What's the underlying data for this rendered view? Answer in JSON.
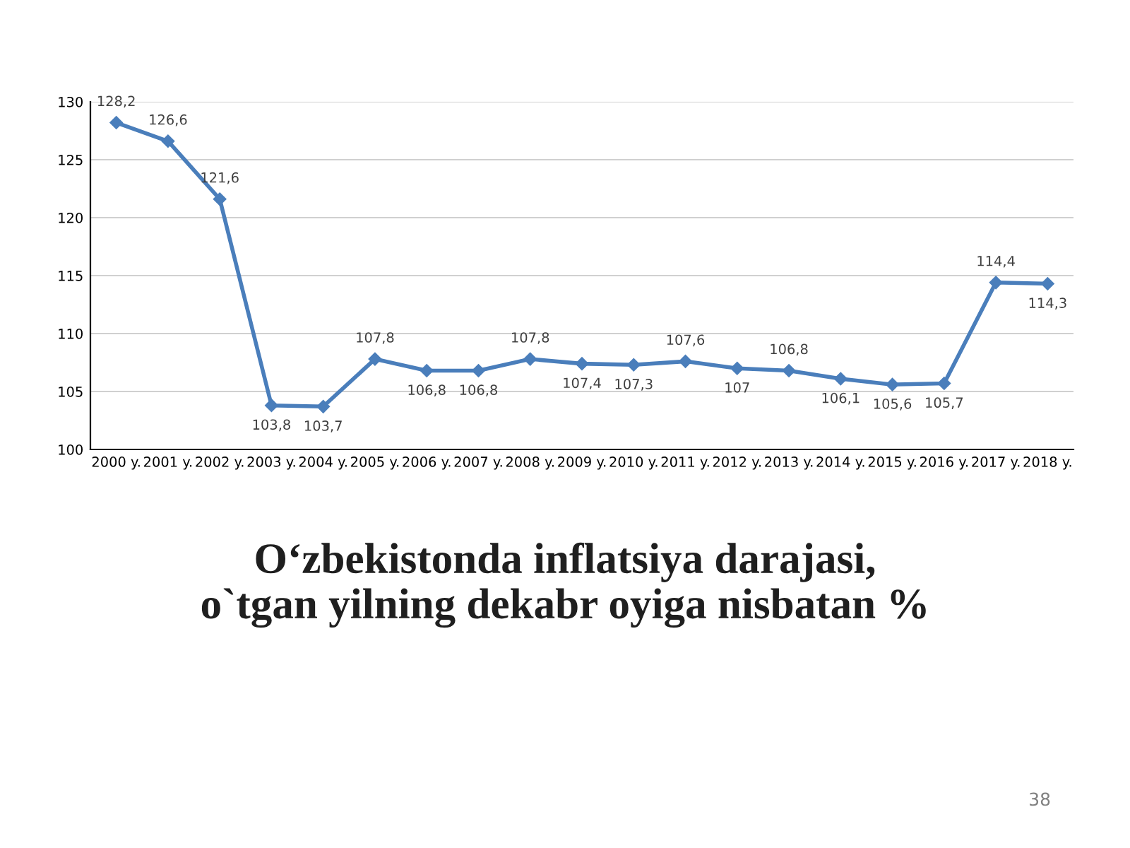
{
  "chart_data": {
    "type": "line",
    "title": "O‘zbekistonda inflatsiya darajasi,\no`tgan yilning dekabr oyiga nisbatan %",
    "categories": [
      "2000 y.",
      "2001 y.",
      "2002 y.",
      "2003 y.",
      "2004 y.",
      "2005 y.",
      "2006 y.",
      "2007 y.",
      "2008 y.",
      "2009 y.",
      "2010 y.",
      "2011 y.",
      "2012 y.",
      "2013 y.",
      "2014 y.",
      "2015 y.",
      "2016 y.",
      "2017 y.",
      "2018 y."
    ],
    "series": [
      {
        "color": "#4a7ebb",
        "values": [
          128.2,
          126.6,
          121.6,
          103.8,
          103.7,
          107.8,
          106.8,
          106.8,
          107.8,
          107.4,
          107.3,
          107.6,
          107,
          106.8,
          106.1,
          105.6,
          105.7,
          114.4,
          114.3
        ],
        "value_labels": [
          "128,2",
          "126,6",
          "121,6",
          "103,8",
          "103,7",
          "107,8",
          "106,8",
          "106,8",
          "107,8",
          "107,4",
          "107,3",
          "107,6",
          "107",
          "106,8",
          "106,1",
          "105,6",
          "105,7",
          "114,4",
          "114,3"
        ]
      }
    ],
    "ylim": [
      100,
      130
    ],
    "yticks": [
      100,
      105,
      110,
      115,
      120,
      125,
      130
    ],
    "grid": "y",
    "marker": "diamond",
    "line_style": "solid",
    "annotations": [
      "38"
    ]
  }
}
